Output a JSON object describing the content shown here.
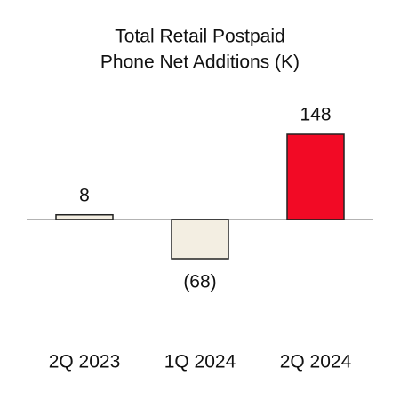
{
  "chart_data": {
    "type": "bar",
    "title": [
      "Total Retail Postpaid",
      "Phone Net Additions (K)"
    ],
    "categories": [
      "2Q 2023",
      "1Q 2024",
      "2Q 2024"
    ],
    "values": [
      8,
      -68,
      148
    ],
    "value_labels": [
      "8",
      "(68)",
      "148"
    ],
    "colors": [
      "#f3eee2",
      "#f3eee2",
      "#f20a25"
    ]
  }
}
